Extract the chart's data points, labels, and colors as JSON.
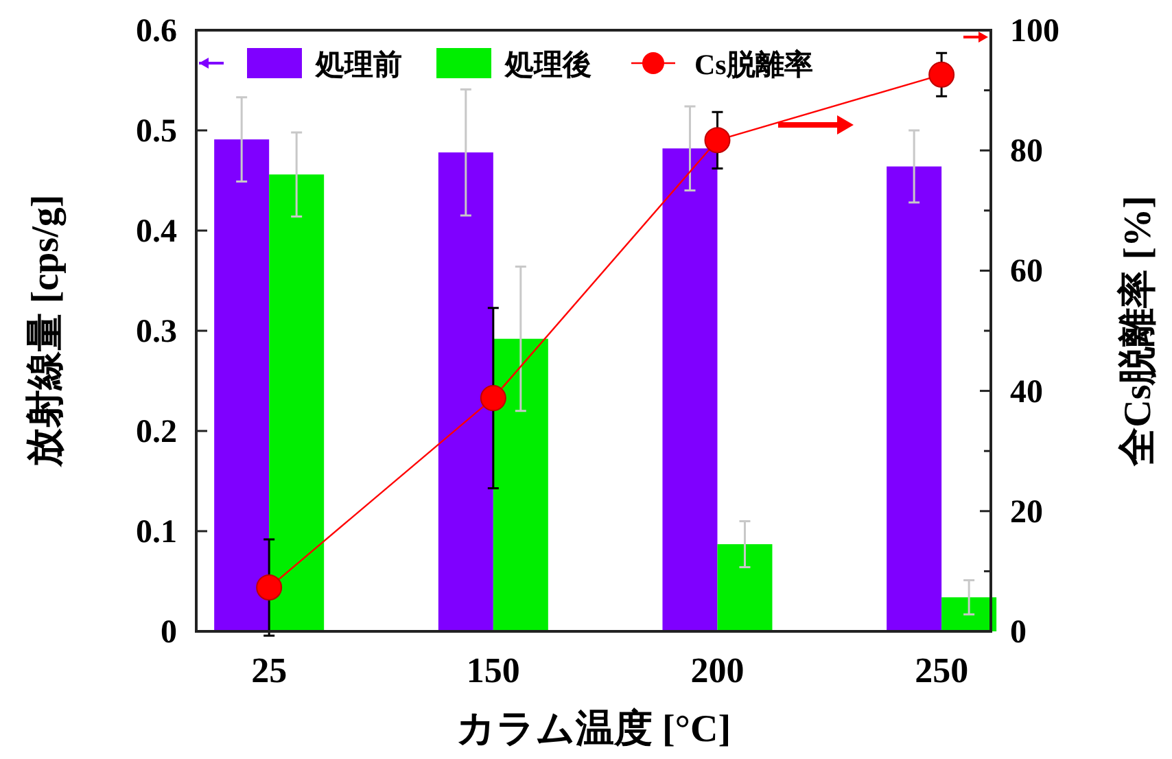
{
  "chart_data": {
    "type": "bar",
    "categories": [
      "25",
      "150",
      "200",
      "250"
    ],
    "series": [
      {
        "name": "処理前",
        "color": "#7f00ff",
        "values": [
          0.491,
          0.478,
          0.482,
          0.464
        ],
        "errors": [
          0.042,
          0.063,
          0.042,
          0.036
        ]
      },
      {
        "name": "処理後",
        "color": "#00ee00",
        "values": [
          0.456,
          0.292,
          0.087,
          0.034
        ],
        "errors": [
          0.042,
          0.072,
          0.023,
          0.017
        ]
      },
      {
        "name": "Cs脱離率",
        "type": "line",
        "axis": "y2",
        "color": "#ff0000",
        "marker": "circle",
        "values": [
          7.3,
          38.8,
          81.7,
          92.6
        ],
        "errors": [
          8,
          15,
          4.7,
          3.6
        ]
      }
    ],
    "xlabel": "カラム温度 [°C]",
    "ylabel": "放射線量 [cps/g]",
    "y2label": "全Cs脱離率 [%]",
    "ylim": [
      0,
      0.6
    ],
    "yticks": [
      0,
      0.1,
      0.2,
      0.3,
      0.4,
      0.5,
      0.6
    ],
    "y2lim": [
      0,
      100
    ],
    "y2ticks": [
      0,
      {
        "value": 10,
        "label": null
      },
      20,
      {
        "value": 30,
        "label": null
      },
      40,
      {
        "value": 50,
        "label": null
      },
      60,
      {
        "value": 70,
        "label": null
      },
      80,
      {
        "value": 90,
        "label": null
      },
      100
    ],
    "legend": "top",
    "grid": false
  }
}
